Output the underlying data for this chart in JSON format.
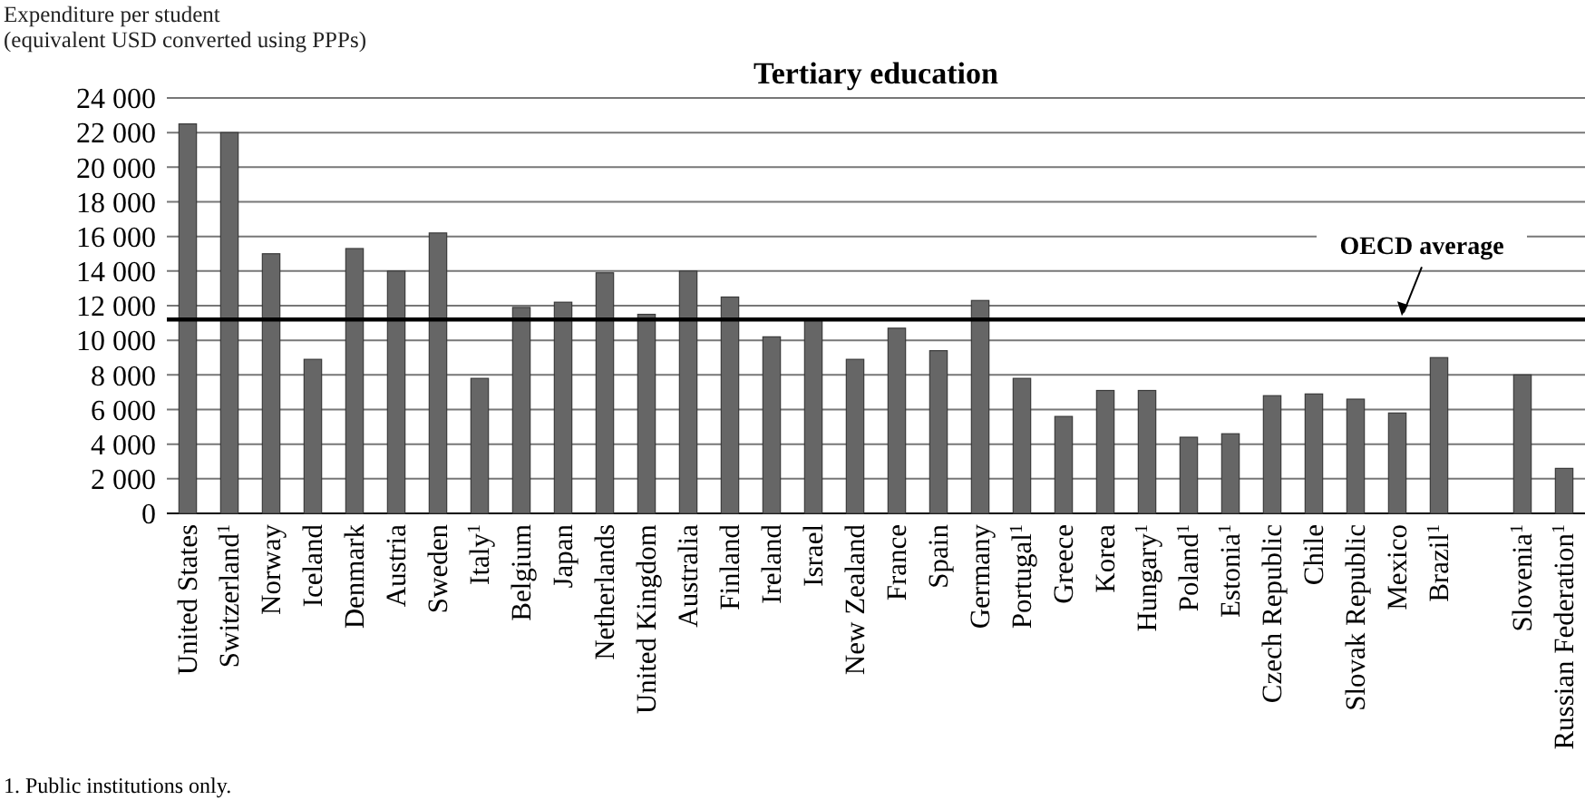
{
  "chart_data": {
    "type": "bar",
    "title": "Tertiary education",
    "ylabel": "Expenditure per student\n(equivalent USD converted using PPPs)",
    "categories": [
      "United States",
      "Switzerland$^{1}$",
      "Norway",
      "Iceland",
      "Denmark",
      "Austria",
      "Sweden",
      "Italy$^{1}$",
      "Belgium",
      "Japan",
      "Netherlands",
      "United Kingdom",
      "Australia",
      "Finland",
      "Ireland",
      "Israel",
      "New Zealand",
      "France",
      "Spain",
      "Germany",
      "Portugal$^{1}$",
      "Greece",
      "Korea",
      "Hungary$^{1}$",
      "Poland$^{1}$",
      "Estonia$^{1}$",
      "Czech Republic",
      "Chile",
      "Slovak Republic",
      "Mexico",
      "Brazil$^{1}$",
      null,
      "Slovenia$^{1}$",
      "Russian Federation$^{1}$"
    ],
    "values": [
      22500,
      22000,
      15000,
      8900,
      15300,
      14000,
      16200,
      7800,
      11900,
      12200,
      13900,
      11500,
      14000,
      12500,
      10200,
      11200,
      8900,
      10700,
      9400,
      12300,
      7800,
      5600,
      7100,
      7100,
      4400,
      4600,
      6800,
      6900,
      6600,
      5800,
      9000,
      null,
      8000,
      2600
    ],
    "color": "#666666",
    "ylim": [
      0,
      24000
    ],
    "yticks": [
      {
        "value": 0,
        "label": "0"
      },
      {
        "value": 2000,
        "label": "2 000"
      },
      {
        "value": 4000,
        "label": "4 000"
      },
      {
        "value": 6000,
        "label": "6 000"
      },
      {
        "value": 8000,
        "label": "8 000"
      },
      {
        "value": 10000,
        "label": "10 000"
      },
      {
        "value": 12000,
        "label": "12 000"
      },
      {
        "value": 14000,
        "label": "14 000"
      },
      {
        "value": 16000,
        "label": "16 000"
      },
      {
        "value": 18000,
        "label": "18 000"
      },
      {
        "value": 20000,
        "label": "20 000"
      },
      {
        "value": 22000,
        "label": "22 000"
      },
      {
        "value": 24000,
        "label": "24 000"
      }
    ],
    "grid": "y",
    "ref_lines": [
      {
        "axis": "y",
        "value": 11200,
        "label": "OECD average",
        "color": "#000000"
      }
    ],
    "annotations": [
      "1. Public institutions only."
    ]
  }
}
